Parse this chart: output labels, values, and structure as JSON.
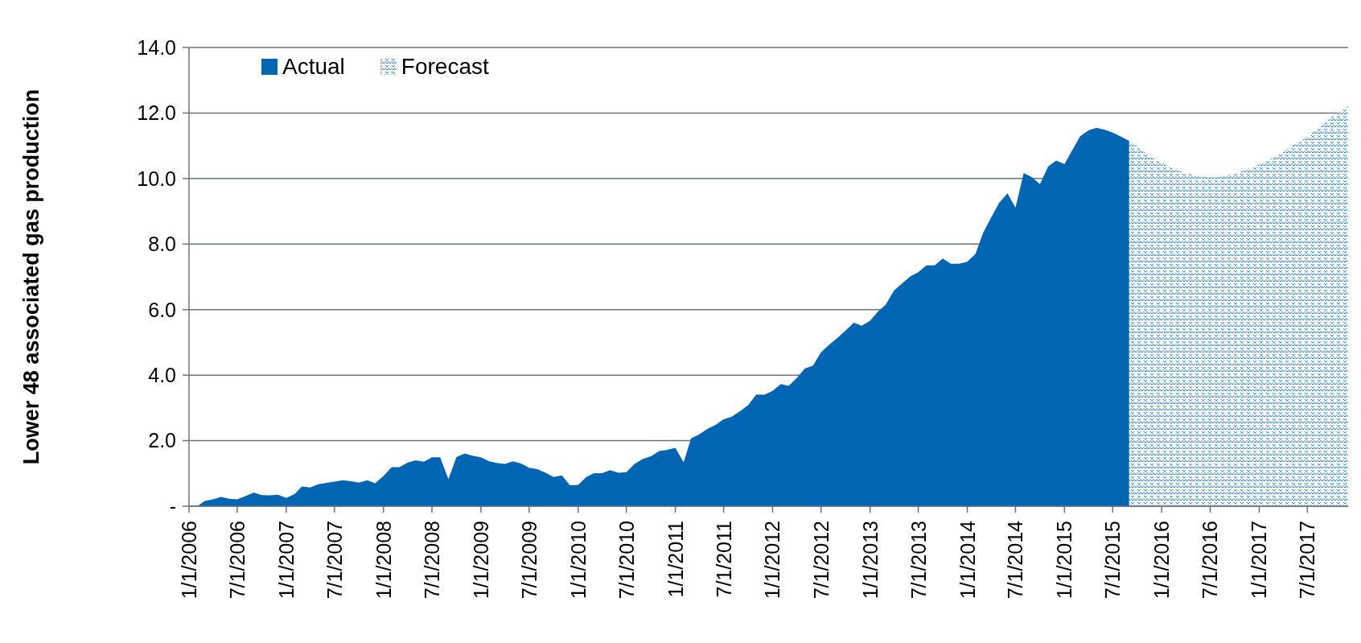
{
  "chart_data": {
    "type": "area",
    "ylabel": "Lower 48 associated gas production",
    "xlim": [
      "2006-01",
      "2017-12"
    ],
    "xticks": [
      {
        "value": "2006-01",
        "label": "1/1/2006"
      },
      {
        "value": "2006-07",
        "label": "7/1/2006"
      },
      {
        "value": "2007-01",
        "label": "1/1/2007"
      },
      {
        "value": "2007-07",
        "label": "7/1/2007"
      },
      {
        "value": "2008-01",
        "label": "1/1/2008"
      },
      {
        "value": "2008-07",
        "label": "7/1/2008"
      },
      {
        "value": "2009-01",
        "label": "1/1/2009"
      },
      {
        "value": "2009-07",
        "label": "7/1/2009"
      },
      {
        "value": "2010-01",
        "label": "1/1/2010"
      },
      {
        "value": "2010-07",
        "label": "7/1/2010"
      },
      {
        "value": "2011-01",
        "label": "1/1/2011"
      },
      {
        "value": "2011-07",
        "label": "7/1/2011"
      },
      {
        "value": "2012-01",
        "label": "1/1/2012"
      },
      {
        "value": "2012-07",
        "label": "7/1/2012"
      },
      {
        "value": "2013-01",
        "label": "1/1/2013"
      },
      {
        "value": "2013-07",
        "label": "7/1/2013"
      },
      {
        "value": "2014-01",
        "label": "1/1/2014"
      },
      {
        "value": "2014-07",
        "label": "7/1/2014"
      },
      {
        "value": "2015-01",
        "label": "1/1/2015"
      },
      {
        "value": "2015-07",
        "label": "7/1/2015"
      },
      {
        "value": "2016-01",
        "label": "1/1/2016"
      },
      {
        "value": "2016-07",
        "label": "7/1/2016"
      },
      {
        "value": "2017-01",
        "label": "1/1/2017"
      },
      {
        "value": "2017-07",
        "label": "7/1/2017"
      }
    ],
    "ylim": [
      0,
      14
    ],
    "yticks": [
      {
        "value": 0,
        "label": "-"
      },
      {
        "value": 2,
        "label": "2.0"
      },
      {
        "value": 4,
        "label": "4.0"
      },
      {
        "value": 6,
        "label": "6.0"
      },
      {
        "value": 8,
        "label": "8.0"
      },
      {
        "value": 10,
        "label": "10.0"
      },
      {
        "value": 12,
        "label": "12.0"
      },
      {
        "value": 14,
        "label": "14.0"
      }
    ],
    "grid": "y",
    "legend": "top left",
    "series": [
      {
        "name": "Actual",
        "color": "#0066b3",
        "x": [
          "2006-02",
          "2006-03",
          "2006-04",
          "2006-05",
          "2006-06",
          "2006-07",
          "2006-08",
          "2006-09",
          "2006-10",
          "2006-11",
          "2006-12",
          "2007-01",
          "2007-02",
          "2007-03",
          "2007-04",
          "2007-05",
          "2007-06",
          "2007-07",
          "2007-08",
          "2007-09",
          "2007-10",
          "2007-11",
          "2007-12",
          "2008-01",
          "2008-02",
          "2008-03",
          "2008-04",
          "2008-05",
          "2008-06",
          "2008-07",
          "2008-08",
          "2008-09",
          "2008-10",
          "2008-11",
          "2008-12",
          "2009-01",
          "2009-02",
          "2009-03",
          "2009-04",
          "2009-05",
          "2009-06",
          "2009-07",
          "2009-08",
          "2009-09",
          "2009-10",
          "2009-11",
          "2009-12",
          "2010-01",
          "2010-02",
          "2010-03",
          "2010-04",
          "2010-05",
          "2010-06",
          "2010-07",
          "2010-08",
          "2010-09",
          "2010-10",
          "2010-11",
          "2010-12",
          "2011-01",
          "2011-02",
          "2011-03",
          "2011-04",
          "2011-05",
          "2011-06",
          "2011-07",
          "2011-08",
          "2011-09",
          "2011-10",
          "2011-11",
          "2011-12",
          "2012-01",
          "2012-02",
          "2012-03",
          "2012-04",
          "2012-05",
          "2012-06",
          "2012-07",
          "2012-08",
          "2012-09",
          "2012-10",
          "2012-11",
          "2012-12",
          "2013-01",
          "2013-02",
          "2013-03",
          "2013-04",
          "2013-05",
          "2013-06",
          "2013-07",
          "2013-08",
          "2013-09",
          "2013-10",
          "2013-11",
          "2013-12",
          "2014-01",
          "2014-02",
          "2014-03",
          "2014-04",
          "2014-05",
          "2014-06",
          "2014-07",
          "2014-08",
          "2014-09",
          "2014-10",
          "2014-11",
          "2014-12",
          "2015-01",
          "2015-02",
          "2015-03",
          "2015-04",
          "2015-05",
          "2015-06",
          "2015-07",
          "2015-08",
          "2015-09"
        ],
        "values": [
          0,
          0.16,
          0.21,
          0.28,
          0.23,
          0.21,
          0.31,
          0.42,
          0.34,
          0.33,
          0.35,
          0.25,
          0.37,
          0.6,
          0.57,
          0.67,
          0.71,
          0.75,
          0.79,
          0.76,
          0.72,
          0.79,
          0.7,
          0.92,
          1.19,
          1.19,
          1.33,
          1.4,
          1.36,
          1.49,
          1.49,
          0.82,
          1.5,
          1.61,
          1.54,
          1.49,
          1.37,
          1.32,
          1.29,
          1.37,
          1.3,
          1.17,
          1.13,
          1.02,
          0.89,
          0.94,
          0.64,
          0.65,
          0.89,
          1.01,
          1.01,
          1.1,
          1.02,
          1.04,
          1.29,
          1.44,
          1.52,
          1.68,
          1.72,
          1.78,
          1.34,
          2.07,
          2.19,
          2.36,
          2.48,
          2.65,
          2.73,
          2.9,
          3.08,
          3.41,
          3.4,
          3.52,
          3.73,
          3.67,
          3.91,
          4.2,
          4.29,
          4.7,
          4.93,
          5.14,
          5.36,
          5.6,
          5.51,
          5.66,
          5.95,
          6.15,
          6.58,
          6.8,
          7.01,
          7.14,
          7.35,
          7.35,
          7.56,
          7.4,
          7.4,
          7.46,
          7.7,
          8.33,
          8.82,
          9.26,
          9.55,
          9.11,
          10.17,
          10.04,
          9.83,
          10.37,
          10.55,
          10.44,
          10.89,
          11.29,
          11.47,
          11.55,
          11.49,
          11.4,
          11.28,
          11.15
        ]
      },
      {
        "name": "Forecast",
        "color": "#0066b3",
        "x": [
          "2015-09",
          "2015-10",
          "2015-11",
          "2015-12",
          "2016-01",
          "2016-02",
          "2016-03",
          "2016-04",
          "2016-05",
          "2016-06",
          "2016-07",
          "2016-08",
          "2016-09",
          "2016-10",
          "2016-11",
          "2016-12",
          "2017-01",
          "2017-02",
          "2017-03",
          "2017-04",
          "2017-05",
          "2017-06",
          "2017-07",
          "2017-08",
          "2017-09",
          "2017-10",
          "2017-11",
          "2017-12"
        ],
        "values": [
          11.15,
          10.97,
          10.79,
          10.62,
          10.48,
          10.36,
          10.25,
          10.17,
          10.11,
          10.06,
          10.04,
          10.05,
          10.09,
          10.15,
          10.23,
          10.33,
          10.43,
          10.54,
          10.67,
          10.81,
          10.97,
          11.11,
          11.29,
          11.47,
          11.67,
          11.88,
          12.05,
          12.21
        ]
      }
    ]
  }
}
